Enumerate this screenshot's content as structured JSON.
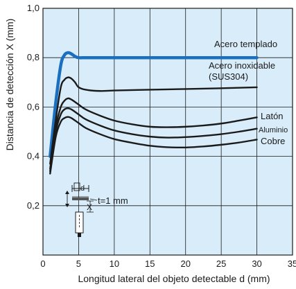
{
  "chart_data": {
    "type": "line",
    "title": "",
    "xlabel": "Longitud lateral del objeto detectable d (mm)",
    "ylabel": "Distancia de detección X (mm)",
    "xlim": [
      0,
      35
    ],
    "ylim": [
      0,
      1.0
    ],
    "xticks": [
      "0",
      "5",
      "10",
      "15",
      "20",
      "25",
      "30",
      "35"
    ],
    "yticks": [
      "0,2",
      "0,4",
      "0,6",
      "0,8",
      "1,0"
    ],
    "grid": true,
    "background_color": "#d9ecf9",
    "series": [
      {
        "name": "Acero templado",
        "color": "#1a6fc0",
        "x": [
          1,
          1.8,
          2.5,
          3,
          3.5,
          4,
          4.5,
          5,
          6,
          8,
          10,
          15,
          20,
          25,
          30
        ],
        "y": [
          0.4,
          0.62,
          0.77,
          0.81,
          0.82,
          0.815,
          0.805,
          0.8,
          0.8,
          0.8,
          0.8,
          0.8,
          0.8,
          0.8,
          0.8
        ]
      },
      {
        "name": "Acero inoxidable (SUS304)",
        "color": "#1a1a1a",
        "x": [
          1,
          1.8,
          2.5,
          3,
          3.5,
          4,
          4.5,
          5,
          6,
          8,
          10,
          15,
          20,
          25,
          30
        ],
        "y": [
          0.37,
          0.55,
          0.68,
          0.71,
          0.72,
          0.715,
          0.7,
          0.68,
          0.67,
          0.665,
          0.667,
          0.67,
          0.673,
          0.676,
          0.68
        ]
      },
      {
        "name": "Latón",
        "color": "#1a1a1a",
        "x": [
          1,
          1.8,
          2.5,
          3,
          3.5,
          4,
          5,
          6,
          8,
          10,
          12.5,
          15,
          17.5,
          20,
          22.5,
          25,
          27.5,
          30
        ],
        "y": [
          0.35,
          0.52,
          0.6,
          0.625,
          0.635,
          0.63,
          0.61,
          0.59,
          0.565,
          0.545,
          0.53,
          0.52,
          0.518,
          0.52,
          0.525,
          0.533,
          0.545,
          0.558
        ]
      },
      {
        "name": "Aluminio",
        "color": "#1a1a1a",
        "x": [
          1,
          1.8,
          2.5,
          3,
          3.5,
          4,
          5,
          6,
          8,
          10,
          12.5,
          15,
          17.5,
          20,
          22.5,
          25,
          27.5,
          30
        ],
        "y": [
          0.34,
          0.5,
          0.57,
          0.59,
          0.595,
          0.59,
          0.57,
          0.55,
          0.525,
          0.505,
          0.49,
          0.48,
          0.476,
          0.478,
          0.483,
          0.49,
          0.5,
          0.512
        ]
      },
      {
        "name": "Cobre",
        "color": "#1a1a1a",
        "x": [
          1,
          1.8,
          2.5,
          3,
          3.5,
          4,
          5,
          6,
          8,
          10,
          12.5,
          15,
          17.5,
          20,
          22.5,
          25,
          27.5,
          30
        ],
        "y": [
          0.33,
          0.48,
          0.54,
          0.555,
          0.56,
          0.555,
          0.535,
          0.515,
          0.49,
          0.47,
          0.455,
          0.443,
          0.437,
          0.436,
          0.44,
          0.447,
          0.456,
          0.468
        ]
      }
    ],
    "inset": {
      "d_label": "d",
      "x_label": "X",
      "t_label": "t=1 mm"
    }
  }
}
